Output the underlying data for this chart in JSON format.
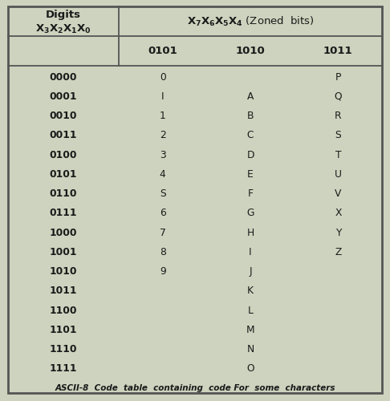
{
  "bg_color": "#cdd3be",
  "border_color": "#555555",
  "text_color": "#1a1a1a",
  "title": "ASCII-8  Code  table  containing  code For  some  characters",
  "col0_header_line1": "Digits",
  "col0_header_line2": "X_3X_2X_1X_0",
  "header_top": "X_7X_6X_5X_4 (Zoned  bits)",
  "col_headers": [
    "0101",
    "1010",
    "1011"
  ],
  "row_labels": [
    "0000",
    "0001",
    "0010",
    "0011",
    "0100",
    "0101",
    "0110",
    "0111",
    "1000",
    "1001",
    "1010",
    "1011",
    "1100",
    "1101",
    "1110",
    "1111"
  ],
  "col1_data": [
    "0",
    "I",
    "1",
    "2",
    "3",
    "4",
    "S",
    "6",
    "7",
    "8",
    "9",
    "",
    "",
    "",
    "",
    ""
  ],
  "col2_data": [
    "",
    "A",
    "B",
    "C",
    "D",
    "E",
    "F",
    "G",
    "H",
    "I",
    "J",
    "K",
    "L",
    "M",
    "N",
    "O"
  ],
  "col3_data": [
    "P",
    "Q",
    "R",
    "S",
    "T",
    "U",
    "V",
    "X",
    "Y",
    "Z",
    "",
    "",
    "",
    "",
    "",
    ""
  ],
  "figw": 4.86,
  "figh": 5.0,
  "dpi": 100
}
